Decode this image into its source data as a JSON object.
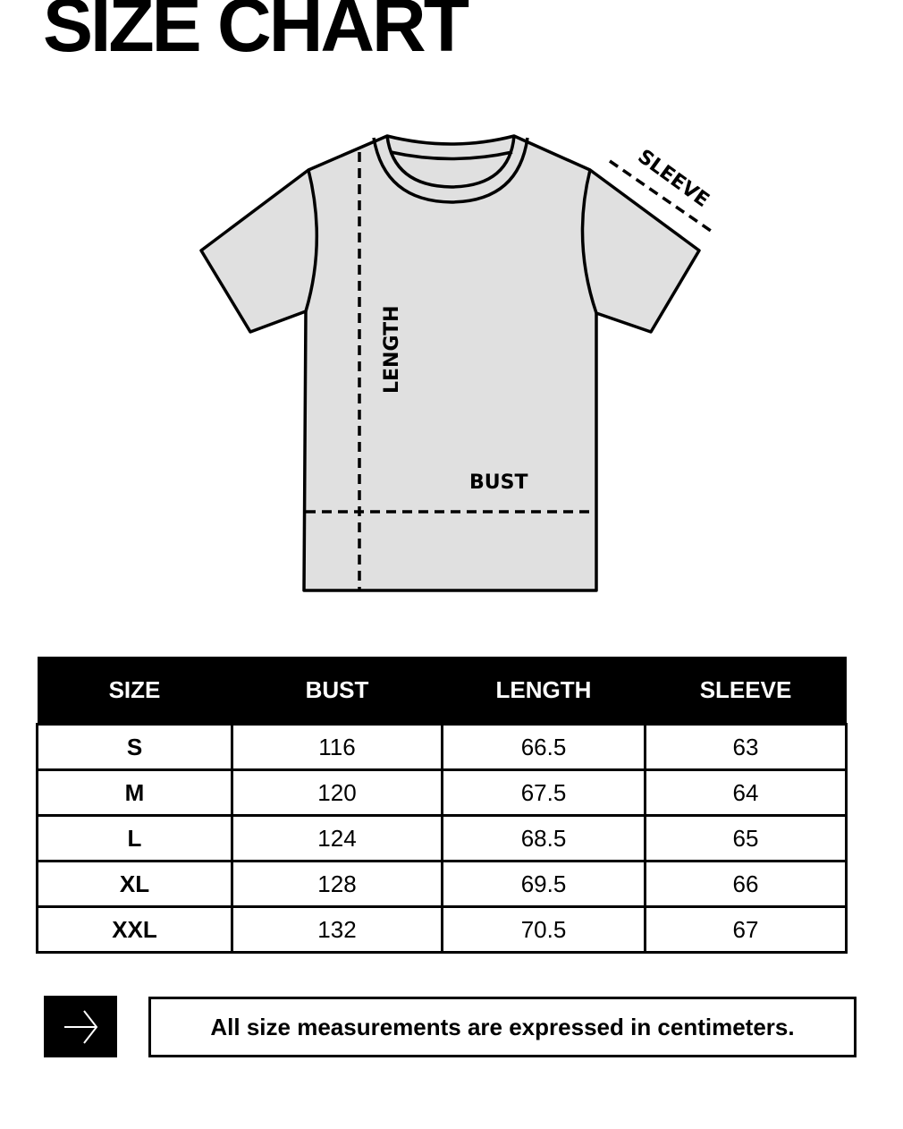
{
  "title": "SIZE CHART",
  "diagram": {
    "labels": {
      "length": "LENGTH",
      "bust": "BUST",
      "sleeve": "SLEEVE"
    },
    "fill_color": "#e0e0e0"
  },
  "table": {
    "headers": [
      "SIZE",
      "BUST",
      "LENGTH",
      "SLEEVE"
    ],
    "rows": [
      [
        "S",
        "116",
        "66.5",
        "63"
      ],
      [
        "M",
        "120",
        "67.5",
        "64"
      ],
      [
        "L",
        "124",
        "68.5",
        "65"
      ],
      [
        "XL",
        "128",
        "69.5",
        "66"
      ],
      [
        "XXL",
        "132",
        "70.5",
        "67"
      ]
    ]
  },
  "footer": {
    "icon": "arrow-right-icon",
    "note": "All size measurements are expressed in centimeters."
  }
}
